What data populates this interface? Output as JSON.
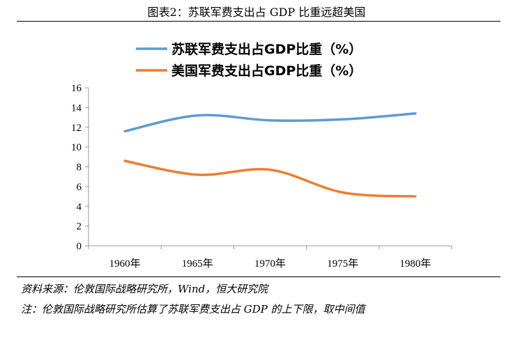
{
  "title": "图表2：苏联军费支出占 GDP 比重远超美国",
  "source": "资料来源：伦敦国际战略研究所，Wind，恒大研究院",
  "note": "注：伦敦国际战略研究所估算了苏联军费支出占 GDP 的上下限，取中间值",
  "chart_data": {
    "type": "line",
    "categories": [
      "1960年",
      "1965年",
      "1970年",
      "1975年",
      "1980年"
    ],
    "yticks": [
      "0",
      "2",
      "4",
      "6",
      "8",
      "10",
      "12",
      "14",
      "16"
    ],
    "ylim": [
      0,
      16
    ],
    "legend_position": "top",
    "series": [
      {
        "name": "苏联军费支出占GDP比重（%）",
        "color": "#5b9bd5",
        "values": [
          11.6,
          13.2,
          12.7,
          12.8,
          13.4
        ]
      },
      {
        "name": "美国军费支出占GDP比重（%）",
        "color": "#ed7d31",
        "values": [
          8.6,
          7.2,
          7.7,
          5.4,
          5.0
        ]
      }
    ]
  }
}
